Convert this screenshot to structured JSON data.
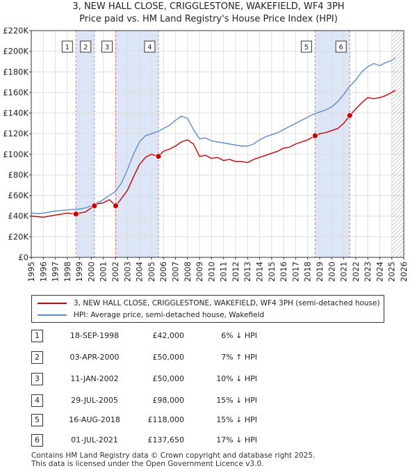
{
  "title_line1": "3, NEW HALL CLOSE, CRIGGLESTONE, WAKEFIELD, WF4 3PH",
  "title_line2": "Price paid vs. HM Land Registry's House Price Index (HPI)",
  "colors": {
    "price_paid": "#cc0000",
    "hpi": "#5b8bd0",
    "shade": "#dde6f7",
    "marker_line": "#e07070",
    "grid": "#dddddd"
  },
  "chart_data": {
    "type": "line",
    "xlim": [
      1995,
      2026
    ],
    "ylim": [
      0,
      220000
    ],
    "x_ticks": [
      "1995",
      "1996",
      "1997",
      "1998",
      "1999",
      "2000",
      "2001",
      "2002",
      "2003",
      "2004",
      "2005",
      "2006",
      "2007",
      "2008",
      "2009",
      "2010",
      "2011",
      "2012",
      "2013",
      "2014",
      "2015",
      "2016",
      "2017",
      "2018",
      "2019",
      "2020",
      "2021",
      "2022",
      "2023",
      "2024",
      "2025",
      "2026"
    ],
    "y_ticks": [
      {
        "value": 0,
        "label": "£0"
      },
      {
        "value": 20000,
        "label": "£20K"
      },
      {
        "value": 40000,
        "label": "£40K"
      },
      {
        "value": 60000,
        "label": "£60K"
      },
      {
        "value": 80000,
        "label": "£80K"
      },
      {
        "value": 100000,
        "label": "£100K"
      },
      {
        "value": 120000,
        "label": "£120K"
      },
      {
        "value": 140000,
        "label": "£140K"
      },
      {
        "value": 160000,
        "label": "£160K"
      },
      {
        "value": 180000,
        "label": "£180K"
      },
      {
        "value": 200000,
        "label": "£200K"
      },
      {
        "value": 220000,
        "label": "£220K"
      }
    ],
    "shaded_spans": [
      [
        1998.72,
        2000.25
      ],
      [
        2002.03,
        2005.58
      ],
      [
        2018.62,
        2021.5
      ]
    ],
    "hatched_from": 2025.0,
    "series": [
      {
        "name": "3, NEW HALL CLOSE, CRIGGLESTONE, WAKEFIELD, WF4 3PH (semi-detached house)",
        "color": "#cc0000",
        "x": [
          1995,
          1995.5,
          1996,
          1996.5,
          1997,
          1997.5,
          1998,
          1998.72,
          1999,
          1999.5,
          2000,
          2000.25,
          2000.5,
          2001,
          2001.5,
          2002.03,
          2002.5,
          2003,
          2003.5,
          2004,
          2004.5,
          2005,
          2005.58,
          2006,
          2006.5,
          2007,
          2007.5,
          2008,
          2008.5,
          2009,
          2009.5,
          2010,
          2010.5,
          2011,
          2011.5,
          2012,
          2012.5,
          2013,
          2013.5,
          2014,
          2014.5,
          2015,
          2015.5,
          2016,
          2016.5,
          2017,
          2017.5,
          2018,
          2018.62,
          2019,
          2019.5,
          2020,
          2020.5,
          2021,
          2021.5,
          2022,
          2022.5,
          2023,
          2023.5,
          2024,
          2024.5,
          2025,
          2025.3
        ],
        "y": [
          40000,
          39500,
          39000,
          40000,
          41000,
          42000,
          43000,
          42000,
          43000,
          44000,
          48000,
          50000,
          52000,
          53000,
          56000,
          50000,
          57000,
          65000,
          78000,
          90000,
          97000,
          100000,
          98000,
          103000,
          105000,
          108000,
          112000,
          114000,
          110000,
          98000,
          99000,
          96000,
          97000,
          94000,
          95000,
          93000,
          93000,
          92000,
          95000,
          97000,
          99000,
          101000,
          103000,
          106000,
          107000,
          110000,
          112000,
          114000,
          118000,
          120000,
          121000,
          123000,
          125000,
          130000,
          137650,
          144000,
          150000,
          155000,
          154000,
          155000,
          157000,
          160000,
          162000
        ]
      },
      {
        "name": "HPI: Average price, semi-detached house, Wakefield",
        "color": "#5b8bd0",
        "x": [
          1995,
          1995.5,
          1996,
          1996.5,
          1997,
          1997.5,
          1998,
          1998.5,
          1999,
          1999.5,
          2000,
          2000.5,
          2001,
          2001.5,
          2002,
          2002.5,
          2003,
          2003.5,
          2004,
          2004.5,
          2005,
          2005.5,
          2006,
          2006.5,
          2007,
          2007.5,
          2008,
          2008.5,
          2009,
          2009.5,
          2010,
          2010.5,
          2011,
          2011.5,
          2012,
          2012.5,
          2013,
          2013.5,
          2014,
          2014.5,
          2015,
          2015.5,
          2016,
          2016.5,
          2017,
          2017.5,
          2018,
          2018.5,
          2019,
          2019.5,
          2020,
          2020.5,
          2021,
          2021.5,
          2022,
          2022.5,
          2023,
          2023.5,
          2024,
          2024.5,
          2025,
          2025.3
        ],
        "y": [
          43000,
          42500,
          43000,
          44000,
          45000,
          45500,
          46000,
          46500,
          47000,
          48000,
          50000,
          53000,
          56000,
          60000,
          64000,
          72000,
          85000,
          100000,
          112000,
          118000,
          120000,
          122000,
          125000,
          128000,
          133000,
          137000,
          135000,
          124000,
          115000,
          116000,
          113000,
          112000,
          111000,
          110000,
          109000,
          108000,
          108000,
          110000,
          114000,
          117000,
          119000,
          121000,
          124000,
          127000,
          130000,
          133000,
          136000,
          139000,
          141000,
          143000,
          146000,
          151000,
          158000,
          166000,
          172000,
          180000,
          185000,
          188000,
          186000,
          189000,
          191000,
          194000
        ]
      }
    ],
    "sales": [
      {
        "num": "1",
        "x": 1998.72,
        "y": 42000
      },
      {
        "num": "2",
        "x": 2000.25,
        "y": 50000
      },
      {
        "num": "3",
        "x": 2002.03,
        "y": 50000
      },
      {
        "num": "4",
        "x": 2005.58,
        "y": 98000
      },
      {
        "num": "5",
        "x": 2018.62,
        "y": 118000
      },
      {
        "num": "6",
        "x": 2021.5,
        "y": 137650
      }
    ]
  },
  "legend": {
    "price_paid": "3, NEW HALL CLOSE, CRIGGLESTONE, WAKEFIELD, WF4 3PH (semi-detached house)",
    "hpi": "HPI: Average price, semi-detached house, Wakefield"
  },
  "table": [
    {
      "num": "1",
      "date": "18-SEP-1998",
      "price": "£42,000",
      "hpi": "6% ↓ HPI"
    },
    {
      "num": "2",
      "date": "03-APR-2000",
      "price": "£50,000",
      "hpi": "7% ↑ HPI"
    },
    {
      "num": "3",
      "date": "11-JAN-2002",
      "price": "£50,000",
      "hpi": "10% ↓ HPI"
    },
    {
      "num": "4",
      "date": "29-JUL-2005",
      "price": "£98,000",
      "hpi": "15% ↓ HPI"
    },
    {
      "num": "5",
      "date": "16-AUG-2018",
      "price": "£118,000",
      "hpi": "15% ↓ HPI"
    },
    {
      "num": "6",
      "date": "01-JUL-2021",
      "price": "£137,650",
      "hpi": "17% ↓ HPI"
    }
  ],
  "footer_line1": "Contains HM Land Registry data © Crown copyright and database right 2025.",
  "footer_line2": "This data is licensed under the Open Government Licence v3.0."
}
